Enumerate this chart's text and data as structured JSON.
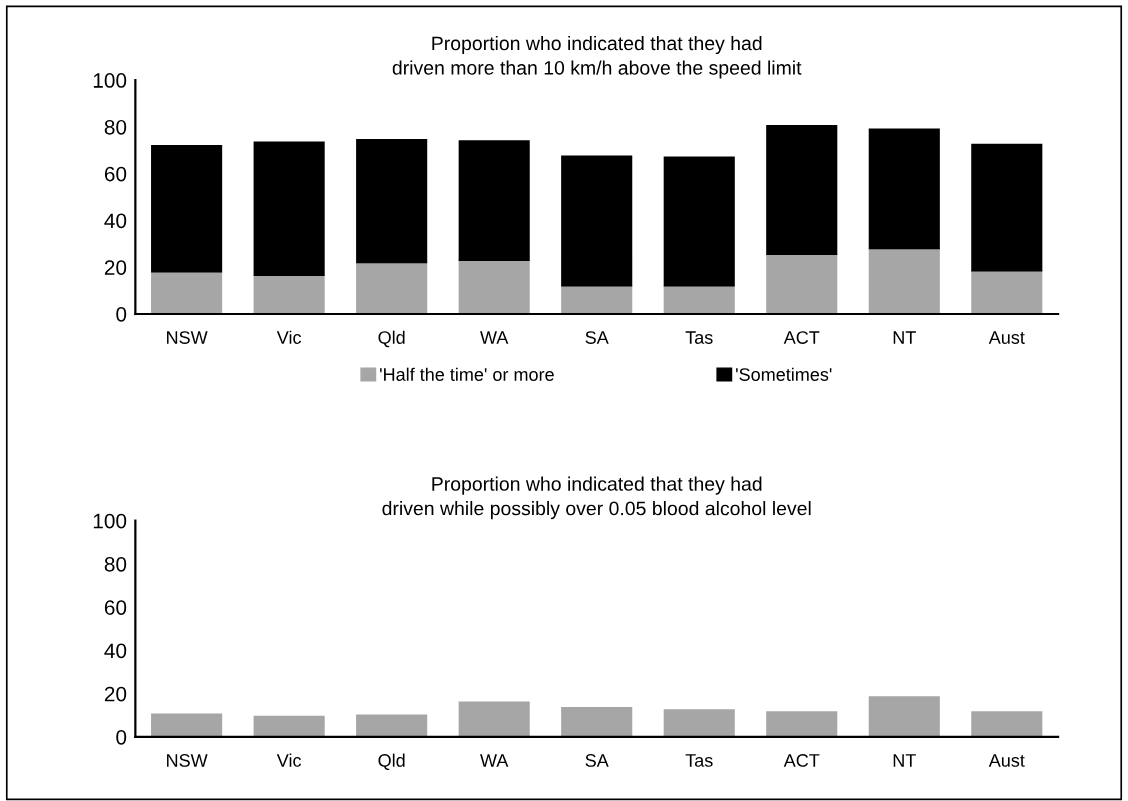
{
  "chart_data": [
    {
      "type": "bar",
      "title": "Proportion who indicated that they had\ndriven more than 10 km/h above the speed limit",
      "categories": [
        "NSW",
        "Vic",
        "Qld",
        "WA",
        "SA",
        "Tas",
        "ACT",
        "NT",
        "Aust"
      ],
      "stacked": true,
      "series": [
        {
          "name": "'Half the time' or more",
          "color": "#a6a6a6",
          "values": [
            18,
            16.5,
            22,
            23,
            12,
            12,
            25.5,
            28,
            18.5
          ]
        },
        {
          "name": "'Sometimes'",
          "color": "#000000",
          "values": [
            54,
            57,
            52.5,
            51,
            55.5,
            55,
            55,
            51,
            54
          ]
        }
      ],
      "ylim": [
        0,
        100
      ],
      "yticks": [
        0,
        20,
        40,
        60,
        80,
        100
      ],
      "legend": "bottom",
      "grid": false
    },
    {
      "type": "bar",
      "title": "Proportion who indicated that they had\ndriven while possibly over 0.05 blood alcohol level",
      "categories": [
        "NSW",
        "Vic",
        "Qld",
        "WA",
        "SA",
        "Tas",
        "ACT",
        "NT",
        "Aust"
      ],
      "series": [
        {
          "color": "#a6a6a6",
          "values": [
            10.5,
            9.5,
            10,
            16,
            13.5,
            12.5,
            11.5,
            18.5,
            11.5
          ]
        }
      ],
      "ylim": [
        0,
        100
      ],
      "yticks": [
        0,
        20,
        40,
        60,
        80,
        100
      ],
      "grid": false
    }
  ]
}
